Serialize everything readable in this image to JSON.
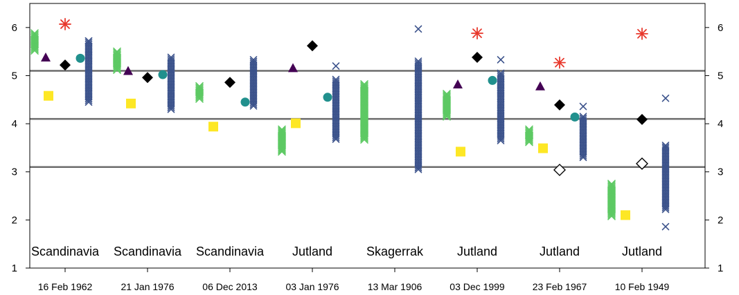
{
  "chart_data": {
    "type": "scatter",
    "ylim": [
      1,
      6.5
    ],
    "yticks": [
      1,
      2,
      3,
      4,
      5,
      6
    ],
    "hlines": [
      3.1,
      4.1,
      5.1
    ],
    "colors": {
      "green": "#5DC963",
      "purple": "#440154",
      "black": "#000000",
      "yellow": "#FDE725",
      "teal": "#21908D",
      "blue": "#3B528B",
      "red": "#E8382C",
      "hline": "#6b6b6b"
    },
    "events": [
      {
        "date": "16 Feb 1962",
        "region": "Scandinavia",
        "green": [
          5.52,
          5.88
        ],
        "triangle": 5.38,
        "diamond": 5.22,
        "square": 4.58,
        "circle": 5.36,
        "star": 6.07,
        "blue": [
          4.45,
          5.72
        ],
        "blue_extremes": [
          5.72
        ]
      },
      {
        "date": "21 Jan 1976",
        "region": "Scandinavia",
        "green": [
          5.12,
          5.5
        ],
        "triangle": 5.1,
        "diamond": 4.96,
        "square": 4.42,
        "circle": 5.02,
        "blue": [
          4.3,
          5.38
        ]
      },
      {
        "date": "06 Dec 2013",
        "region": "Scandinavia",
        "green": [
          4.52,
          4.78
        ],
        "diamond": 4.86,
        "square": 3.94,
        "circle": 4.45,
        "blue": [
          4.37,
          5.33
        ]
      },
      {
        "date": "03 Jan 1976",
        "region": "Jutland",
        "green": [
          3.42,
          3.88
        ],
        "triangle": 5.16,
        "diamond": 5.62,
        "square": 4.01,
        "circle": 4.55,
        "blue": [
          3.68,
          4.92
        ],
        "blue_extremes": [
          5.2
        ]
      },
      {
        "date": "13 Mar 1906",
        "region": "Skagerrak",
        "green": [
          3.67,
          4.82
        ],
        "blue": [
          3.05,
          5.3
        ],
        "blue_extremes": [
          5.97
        ]
      },
      {
        "date": "03 Dec 1999",
        "region": "Jutland",
        "green": [
          4.15,
          4.62
        ],
        "triangle": 4.82,
        "diamond": 5.38,
        "square": 3.42,
        "circle": 4.9,
        "star": 5.88,
        "blue": [
          3.65,
          5.05
        ],
        "blue_extremes": [
          5.33
        ]
      },
      {
        "date": "23 Feb 1967",
        "region": "Jutland",
        "green": [
          3.62,
          3.88
        ],
        "triangle": 4.78,
        "diamond": 4.39,
        "open_diamond": 3.04,
        "square": 3.49,
        "circle": 4.14,
        "star": 5.27,
        "blue": [
          3.3,
          4.15
        ],
        "blue_extremes": [
          4.36
        ]
      },
      {
        "date": "10 Feb 1949",
        "region": "Jutland",
        "green": [
          2.08,
          2.75
        ],
        "diamond": 4.09,
        "open_diamond": 3.17,
        "square": 2.1,
        "star": 5.87,
        "blue": [
          2.22,
          3.55
        ],
        "blue_extremes": [
          1.86,
          4.53
        ]
      }
    ]
  }
}
